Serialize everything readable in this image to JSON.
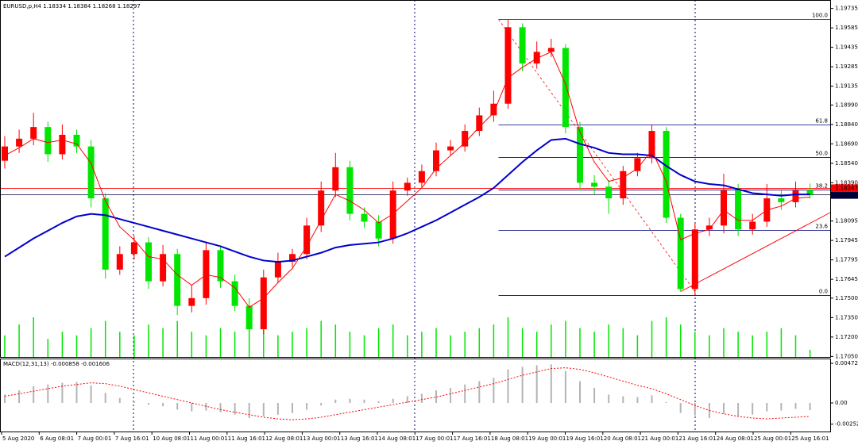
{
  "chart_data": {
    "type": "candlestick",
    "symbol": "EURUSD,p,H4",
    "open": [
      1.1856,
      1.1867,
      1.1873,
      1.1882,
      1.1861,
      1.1876,
      1.1867,
      1.1827,
      1.1772,
      1.1784,
      1.1793,
      1.1763,
      1.1784,
      1.1744,
      1.175,
      1.1787,
      1.1763,
      1.1744,
      1.1726,
      1.1766,
      1.1778,
      1.1784,
      1.1806,
      1.1833,
      1.1851,
      1.1815,
      1.1809,
      1.1796,
      1.1833,
      1.1839,
      1.1848,
      1.1864,
      1.1867,
      1.1879,
      1.1891,
      1.19,
      1.1959,
      1.1931,
      1.194,
      1.1943,
      1.1882,
      1.1839,
      1.1836,
      1.1827,
      1.1848,
      1.1858,
      1.1879,
      1.1812,
      1.1757,
      1.1803,
      1.1806,
      1.1833,
      1.1803,
      1.1809,
      1.1827,
      1.1824,
      1.18334
    ],
    "high": [
      1.1875,
      1.188,
      1.1893,
      1.1886,
      1.1884,
      1.188,
      1.1872,
      1.1831,
      1.179,
      1.1798,
      1.1797,
      1.1791,
      1.1788,
      1.176,
      1.1793,
      1.179,
      1.1768,
      1.175,
      1.1772,
      1.1785,
      1.1788,
      1.1812,
      1.184,
      1.1862,
      1.1856,
      1.182,
      1.1814,
      1.184,
      1.1843,
      1.1853,
      1.187,
      1.1872,
      1.1884,
      1.1897,
      1.191,
      1.1965,
      1.1962,
      1.1948,
      1.195,
      1.1946,
      1.1886,
      1.1845,
      1.1841,
      1.1852,
      1.1862,
      1.1884,
      1.1882,
      1.1815,
      1.1808,
      1.1812,
      1.1846,
      1.1838,
      1.1815,
      1.1838,
      1.1833,
      1.184,
      1.18384
    ],
    "low": [
      1.185,
      1.1862,
      1.1868,
      1.1855,
      1.1857,
      1.1862,
      1.182,
      1.1765,
      1.1768,
      1.178,
      1.1757,
      1.1759,
      1.1737,
      1.1739,
      1.1745,
      1.1758,
      1.174,
      1.1721,
      1.1722,
      1.1762,
      1.1774,
      1.178,
      1.1801,
      1.1828,
      1.181,
      1.1804,
      1.179,
      1.1792,
      1.1829,
      1.1835,
      1.1844,
      1.186,
      1.1863,
      1.1875,
      1.1886,
      1.1896,
      1.1925,
      1.1927,
      1.1936,
      1.1877,
      1.1833,
      1.183,
      1.1815,
      1.1822,
      1.1844,
      1.1854,
      1.1808,
      1.1755,
      1.1752,
      1.1798,
      1.18,
      1.1798,
      1.1799,
      1.1805,
      1.1818,
      1.182,
      1.18268
    ],
    "close": [
      1.1867,
      1.1873,
      1.1882,
      1.1861,
      1.1876,
      1.1867,
      1.1827,
      1.1772,
      1.1784,
      1.1793,
      1.1763,
      1.1784,
      1.1744,
      1.175,
      1.1787,
      1.1763,
      1.1744,
      1.1726,
      1.1766,
      1.1778,
      1.1784,
      1.1806,
      1.1833,
      1.1851,
      1.1815,
      1.1809,
      1.1796,
      1.1833,
      1.1839,
      1.1848,
      1.1864,
      1.1867,
      1.1879,
      1.1891,
      1.19,
      1.1959,
      1.1931,
      1.194,
      1.1943,
      1.1882,
      1.1839,
      1.1836,
      1.1827,
      1.1848,
      1.1858,
      1.1879,
      1.1812,
      1.1757,
      1.1803,
      1.1806,
      1.1833,
      1.1803,
      1.1809,
      1.1827,
      1.1824,
      1.1833,
      1.18297
    ],
    "volume": [
      30,
      45,
      55,
      25,
      35,
      30,
      40,
      50,
      35,
      30,
      45,
      40,
      50,
      35,
      30,
      40,
      35,
      55,
      45,
      30,
      35,
      40,
      50,
      45,
      35,
      30,
      40,
      45,
      30,
      35,
      40,
      30,
      35,
      40,
      45,
      55,
      40,
      35,
      45,
      50,
      40,
      35,
      45,
      40,
      30,
      50,
      55,
      45,
      35,
      30,
      40,
      35,
      30,
      35,
      40,
      30,
      10
    ],
    "ma_fast": {
      "color": "#ff0000",
      "values": [
        1.186,
        1.1866,
        1.1873,
        1.187,
        1.1872,
        1.1869,
        1.1854,
        1.1825,
        1.1805,
        1.1795,
        1.1782,
        1.178,
        1.1768,
        1.176,
        1.1768,
        1.1766,
        1.1758,
        1.1743,
        1.175,
        1.1762,
        1.1773,
        1.179,
        1.181,
        1.183,
        1.1825,
        1.1818,
        1.1808,
        1.1815,
        1.1825,
        1.1835,
        1.185,
        1.186,
        1.187,
        1.1882,
        1.1893,
        1.192,
        1.1928,
        1.1935,
        1.194,
        1.1915,
        1.1878,
        1.1855,
        1.184,
        1.1843,
        1.185,
        1.1864,
        1.184,
        1.1795,
        1.18,
        1.1803,
        1.1818,
        1.181,
        1.181,
        1.1818,
        1.1821,
        1.1827,
        1.1828
      ]
    },
    "ma_slow": {
      "color": "#0000cd",
      "values": [
        1.1782,
        1.1789,
        1.1796,
        1.1802,
        1.1808,
        1.1813,
        1.1815,
        1.1814,
        1.1811,
        1.1808,
        1.1805,
        1.1802,
        1.1799,
        1.1796,
        1.1793,
        1.179,
        1.1786,
        1.1782,
        1.1779,
        1.1778,
        1.1779,
        1.1782,
        1.1785,
        1.1789,
        1.1791,
        1.1792,
        1.1793,
        1.1796,
        1.18,
        1.1805,
        1.181,
        1.1816,
        1.1822,
        1.1828,
        1.1835,
        1.1845,
        1.1855,
        1.1864,
        1.1872,
        1.1873,
        1.1869,
        1.1866,
        1.1862,
        1.1861,
        1.1861,
        1.186,
        1.1852,
        1.1845,
        1.184,
        1.1838,
        1.1837,
        1.1834,
        1.1831,
        1.183,
        1.1829,
        1.183,
        1.183
      ]
    },
    "up_color": "#ff0000",
    "down_color": "#00e600",
    "volume_color": "#00e600",
    "ylim": [
      1.1704,
      1.198
    ],
    "yticks": [
      1.19735,
      1.19585,
      1.19435,
      1.19285,
      1.19135,
      {
        "value": 1.1899,
        "label": "1.18990"
      },
      {
        "value": 1.1884,
        "label": "1.18840"
      },
      {
        "value": 1.1869,
        "label": "1.18690"
      },
      {
        "value": 1.1854,
        "label": "1.18540"
      },
      {
        "value": 1.1839,
        "label": "1.18390"
      },
      1.18095,
      1.17945,
      1.17795,
      1.17645,
      {
        "value": 1.175,
        "label": "1.17500"
      },
      {
        "value": 1.1735,
        "label": "1.17350"
      },
      {
        "value": 1.172,
        "label": "1.17200"
      },
      {
        "value": 1.1705,
        "label": "1.17050"
      }
    ],
    "alert_line": 1.18347,
    "fibonacci": {
      "levels": [
        {
          "label": "100.0",
          "price": 1.1965
        },
        {
          "label": "61.8",
          "price": 1.18836
        },
        {
          "label": "50.0",
          "price": 1.18585
        },
        {
          "label": "38.2",
          "price": 1.18334
        },
        {
          "label": "23.6",
          "price": 1.18023
        },
        {
          "label": "0.0",
          "price": 1.1752
        }
      ]
    },
    "trendline": {
      "from_price": 1.1755,
      "to_price": 1.1816
    },
    "time_labels": [
      "5 Aug 2020",
      "6 Aug 08:01",
      "7 Aug 00:01",
      "7 Aug 16:01",
      "10 Aug 08:01",
      "11 Aug 00:01",
      "11 Aug 16:01",
      "12 Aug 08:01",
      "13 Aug 00:01",
      "13 Aug 16:01",
      "14 Aug 08:01",
      "17 Aug 00:01",
      "17 Aug 16:01",
      "18 Aug 08:01",
      "19 Aug 00:01",
      "19 Aug 16:01",
      "20 Aug 08:01",
      "21 Aug 00:01",
      "21 Aug 16:01",
      "24 Aug 08:01",
      "25 Aug 00:01",
      "25 Aug 16:01"
    ],
    "macd": {
      "title": "MACD(12,31,13)",
      "histogram_color": "#b4b4b4",
      "signal_color": "#ff0000",
      "histogram": [
        0.001,
        0.0015,
        0.002,
        0.0022,
        0.0024,
        0.0025,
        0.0021,
        0.0012,
        0.0006,
        0.0002,
        -0.0002,
        -0.0004,
        -0.0008,
        -0.001,
        -0.0009,
        -0.0011,
        -0.0014,
        -0.0018,
        -0.0016,
        -0.0014,
        -0.0012,
        -0.0008,
        -0.0003,
        0.0004,
        0.0005,
        0.0004,
        0.0002,
        0.0005,
        0.0008,
        0.0011,
        0.0015,
        0.0018,
        0.0022,
        0.0026,
        0.003,
        0.004,
        0.0043,
        0.0045,
        0.0046,
        0.0038,
        0.0026,
        0.0018,
        0.001,
        0.0008,
        0.0007,
        0.0009,
        0.0001,
        -0.0012,
        -0.0015,
        -0.0018,
        -0.0013,
        -0.0016,
        -0.0014,
        -0.001,
        -0.0009,
        -0.0007,
        -0.000858
      ],
      "signal": [
        0.0008,
        0.0011,
        0.0014,
        0.0017,
        0.002,
        0.0022,
        0.0024,
        0.0023,
        0.002,
        0.0016,
        0.0012,
        0.0008,
        0.0004,
        0.0,
        -0.0004,
        -0.0008,
        -0.0011,
        -0.0014,
        -0.0017,
        -0.0019,
        -0.002,
        -0.0019,
        -0.0017,
        -0.0014,
        -0.0011,
        -0.0008,
        -0.0005,
        -0.0002,
        0.0001,
        0.0004,
        0.0007,
        0.0011,
        0.0015,
        0.0019,
        0.0023,
        0.0028,
        0.0033,
        0.0037,
        0.0041,
        0.0042,
        0.004,
        0.0036,
        0.0031,
        0.0026,
        0.0021,
        0.0017,
        0.0011,
        0.0004,
        -0.0003,
        -0.0009,
        -0.0013,
        -0.0016,
        -0.0018,
        -0.0019,
        -0.0018,
        -0.0017,
        -0.001606
      ],
      "ylim": [
        -0.0035,
        0.0052
      ],
      "yticks": [
        0.004722,
        {
          "value": 0,
          "label": "0.00"
        },
        -0.002529
      ]
    }
  }
}
